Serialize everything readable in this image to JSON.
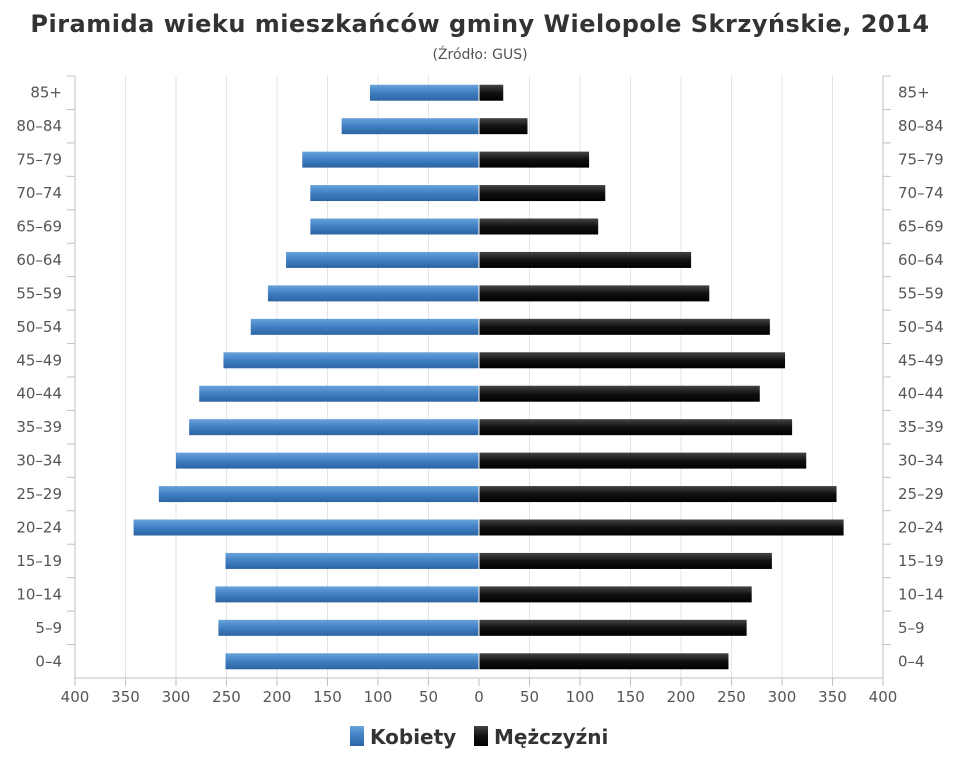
{
  "chart_data": {
    "type": "bar",
    "orientation": "horizontal",
    "title": "Piramida wieku mieszkańców gminy Wielopole Skrzyńskie, 2014",
    "subtitle": "(Źródło: GUS)",
    "categories": [
      "85+",
      "80-84",
      "75-79",
      "70-74",
      "65-69",
      "60-64",
      "55-59",
      "50-54",
      "45-49",
      "40-44",
      "35-39",
      "30-34",
      "25-29",
      "20-24",
      "15-19",
      "10-14",
      "5-9",
      "0-4"
    ],
    "series": [
      {
        "name": "Kobiety",
        "color": "#4a86c8",
        "side": "left",
        "values": [
          108,
          136,
          175,
          167,
          167,
          191,
          209,
          226,
          253,
          277,
          287,
          300,
          317,
          342,
          251,
          261,
          258,
          251
        ]
      },
      {
        "name": "Mężczyźni",
        "color": "#111111",
        "side": "right",
        "values": [
          24,
          48,
          109,
          125,
          118,
          210,
          228,
          288,
          303,
          278,
          310,
          324,
          354,
          361,
          290,
          270,
          265,
          247
        ]
      }
    ],
    "xlim": [
      -400,
      400
    ],
    "xticks": [
      "400",
      "350",
      "300",
      "250",
      "200",
      "150",
      "100",
      "50",
      "0",
      "50",
      "100",
      "150",
      "200",
      "250",
      "300",
      "350",
      "400"
    ],
    "grid": true,
    "legend_position": "bottom"
  }
}
